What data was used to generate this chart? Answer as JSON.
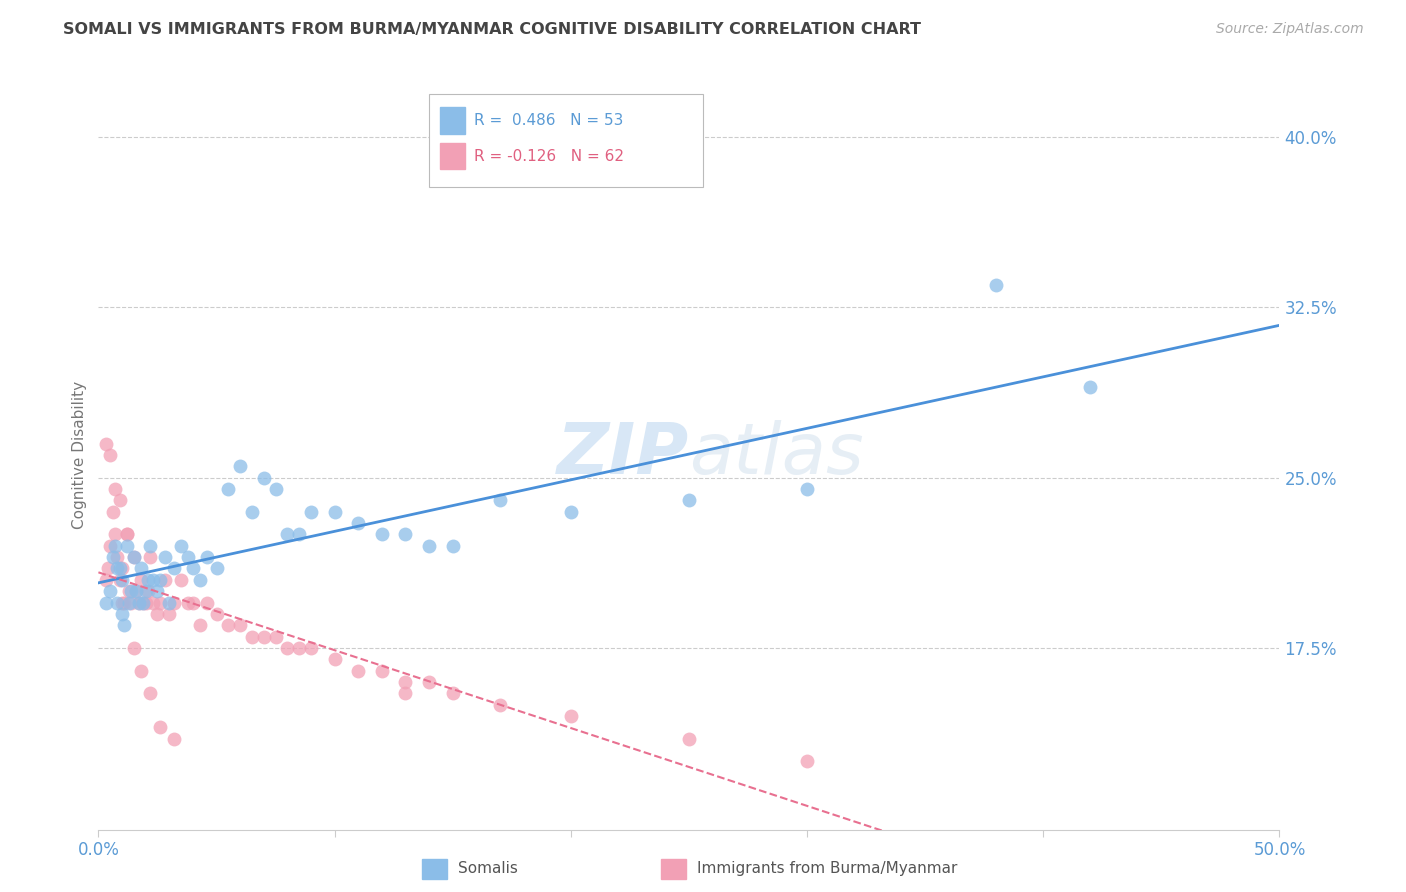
{
  "title": "SOMALI VS IMMIGRANTS FROM BURMA/MYANMAR COGNITIVE DISABILITY CORRELATION CHART",
  "source": "Source: ZipAtlas.com",
  "ylabel": "Cognitive Disability",
  "ytick_labels": [
    "17.5%",
    "25.0%",
    "32.5%",
    "40.0%"
  ],
  "ytick_values": [
    0.175,
    0.25,
    0.325,
    0.4
  ],
  "xlim": [
    0.0,
    0.5
  ],
  "ylim": [
    0.095,
    0.425
  ],
  "watermark": "ZIPatlas",
  "somali_R": 0.486,
  "somali_N": 53,
  "burma_R": -0.126,
  "burma_N": 62,
  "somali_color": "#8bbde8",
  "burma_color": "#f2a0b5",
  "somali_line_color": "#4a90d9",
  "burma_line_color": "#e87090",
  "somali_x": [
    0.003,
    0.005,
    0.006,
    0.007,
    0.008,
    0.008,
    0.009,
    0.01,
    0.01,
    0.011,
    0.012,
    0.013,
    0.014,
    0.015,
    0.016,
    0.017,
    0.018,
    0.019,
    0.02,
    0.021,
    0.022,
    0.023,
    0.025,
    0.026,
    0.028,
    0.03,
    0.032,
    0.035,
    0.038,
    0.04,
    0.043,
    0.046,
    0.05,
    0.055,
    0.06,
    0.065,
    0.07,
    0.075,
    0.08,
    0.085,
    0.09,
    0.1,
    0.11,
    0.12,
    0.13,
    0.14,
    0.15,
    0.17,
    0.2,
    0.25,
    0.3,
    0.38,
    0.42
  ],
  "somali_y": [
    0.195,
    0.2,
    0.215,
    0.22,
    0.195,
    0.21,
    0.21,
    0.205,
    0.19,
    0.185,
    0.22,
    0.195,
    0.2,
    0.215,
    0.2,
    0.195,
    0.21,
    0.195,
    0.2,
    0.205,
    0.22,
    0.205,
    0.2,
    0.205,
    0.215,
    0.195,
    0.21,
    0.22,
    0.215,
    0.21,
    0.205,
    0.215,
    0.21,
    0.245,
    0.255,
    0.235,
    0.25,
    0.245,
    0.225,
    0.225,
    0.235,
    0.235,
    0.23,
    0.225,
    0.225,
    0.22,
    0.22,
    0.24,
    0.235,
    0.24,
    0.245,
    0.335,
    0.29
  ],
  "burma_x": [
    0.003,
    0.004,
    0.005,
    0.006,
    0.007,
    0.008,
    0.009,
    0.01,
    0.01,
    0.011,
    0.012,
    0.013,
    0.014,
    0.015,
    0.016,
    0.017,
    0.018,
    0.019,
    0.02,
    0.021,
    0.022,
    0.023,
    0.025,
    0.026,
    0.028,
    0.03,
    0.032,
    0.035,
    0.038,
    0.04,
    0.043,
    0.046,
    0.05,
    0.055,
    0.06,
    0.065,
    0.07,
    0.075,
    0.08,
    0.085,
    0.09,
    0.1,
    0.11,
    0.12,
    0.13,
    0.14,
    0.15,
    0.17,
    0.2,
    0.25,
    0.3,
    0.003,
    0.005,
    0.007,
    0.009,
    0.012,
    0.015,
    0.018,
    0.022,
    0.026,
    0.032,
    0.13
  ],
  "burma_y": [
    0.205,
    0.21,
    0.22,
    0.235,
    0.225,
    0.215,
    0.205,
    0.21,
    0.195,
    0.195,
    0.225,
    0.2,
    0.195,
    0.215,
    0.2,
    0.195,
    0.205,
    0.195,
    0.195,
    0.2,
    0.215,
    0.195,
    0.19,
    0.195,
    0.205,
    0.19,
    0.195,
    0.205,
    0.195,
    0.195,
    0.185,
    0.195,
    0.19,
    0.185,
    0.185,
    0.18,
    0.18,
    0.18,
    0.175,
    0.175,
    0.175,
    0.17,
    0.165,
    0.165,
    0.16,
    0.16,
    0.155,
    0.15,
    0.145,
    0.135,
    0.125,
    0.265,
    0.26,
    0.245,
    0.24,
    0.225,
    0.175,
    0.165,
    0.155,
    0.14,
    0.135,
    0.155
  ],
  "grid_color": "#cccccc",
  "background_color": "#ffffff",
  "title_color": "#444444",
  "tick_label_color": "#5b9bd5"
}
